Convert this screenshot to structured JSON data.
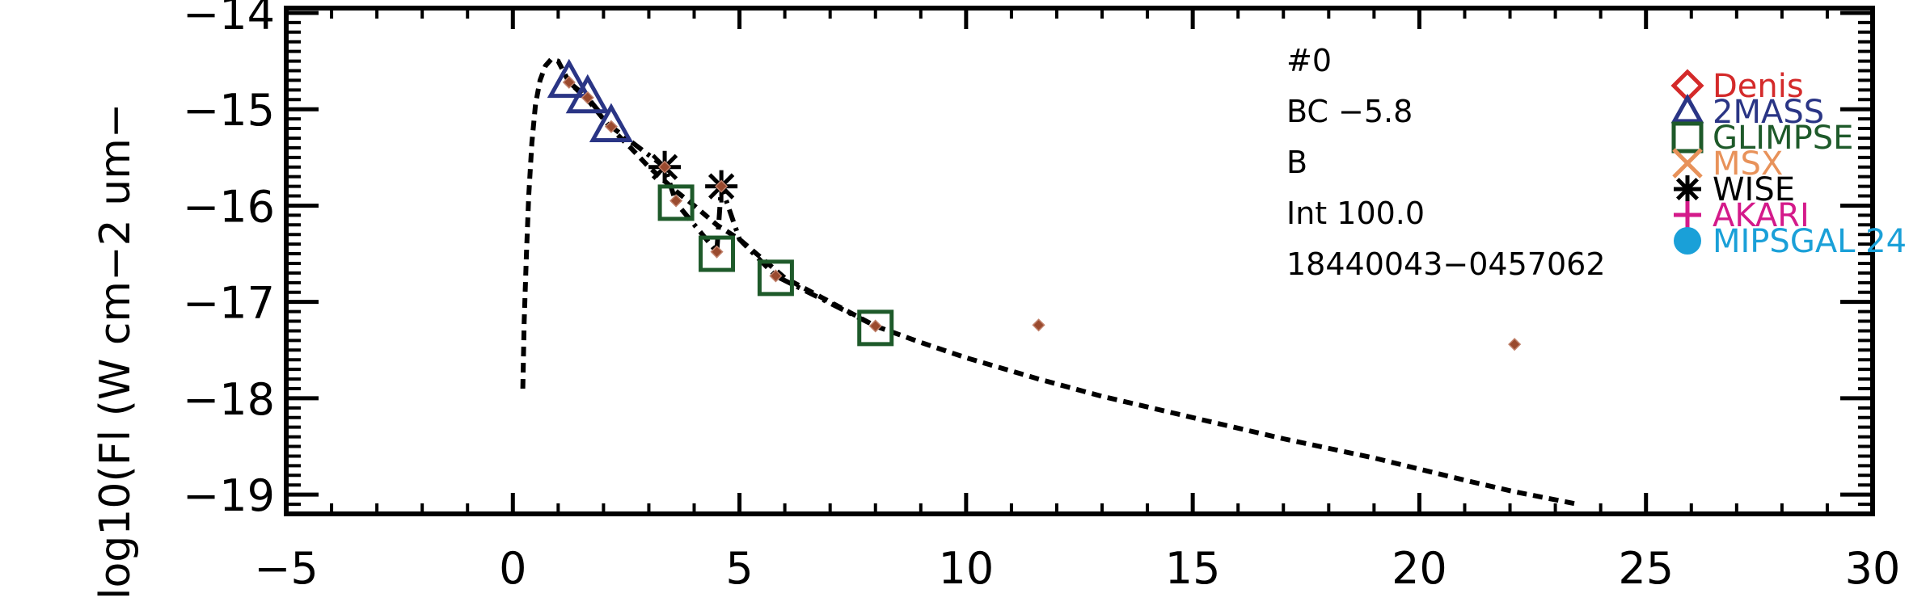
{
  "chart_data": {
    "type": "scatter",
    "ylabel": "log10(Fl (W cm−2 um−",
    "xlim": [
      -5,
      30
    ],
    "ylim": [
      -19.2,
      -13.95
    ],
    "x_ticks": [
      -5,
      0,
      5,
      10,
      15,
      20,
      25,
      30
    ],
    "x_tick_labels": [
      "−5",
      "0",
      "5",
      "10",
      "15",
      "20",
      "25",
      "30"
    ],
    "y_ticks": [
      -19,
      -18,
      -17,
      -16,
      -15,
      -14
    ],
    "y_tick_labels": [
      "−19",
      "−18",
      "−17",
      "−16",
      "−15",
      "−14"
    ],
    "info_lines": [
      "#0",
      "BC −5.8",
      "B",
      "Int 100.0",
      "18440043−0457062"
    ],
    "model_curve": {
      "style": "dashed",
      "color": "#000000",
      "x": [
        0.22,
        0.25,
        0.3,
        0.35,
        0.42,
        0.5,
        0.6,
        0.72,
        0.85,
        1.0,
        1.24,
        1.65,
        2.17,
        2.6,
        3.0,
        3.6,
        4.0,
        4.5,
        5.0,
        5.5,
        6.0,
        7.0,
        8.0,
        9.0,
        10.0,
        11.6,
        13.0,
        15.0,
        17.0,
        19.0,
        21.0,
        22.1,
        23.5
      ],
      "y": [
        -17.9,
        -17.2,
        -16.5,
        -15.9,
        -15.35,
        -14.95,
        -14.7,
        -14.55,
        -14.48,
        -14.5,
        -14.72,
        -14.9,
        -15.2,
        -15.4,
        -15.6,
        -15.85,
        -16.0,
        -16.2,
        -16.35,
        -16.55,
        -16.75,
        -17.0,
        -17.25,
        -17.42,
        -17.58,
        -17.8,
        -17.98,
        -18.2,
        -18.42,
        -18.62,
        -18.85,
        -18.97,
        -19.1
      ]
    },
    "observed_curve": {
      "style": "dash-dot",
      "color": "#000000",
      "x": [
        1.24,
        1.65,
        2.17,
        3.35,
        3.6,
        4.5,
        4.6,
        5.0,
        5.8,
        8.0
      ],
      "y": [
        -14.72,
        -14.88,
        -15.18,
        -15.6,
        -15.97,
        -16.48,
        -15.8,
        -16.35,
        -16.73,
        -17.25
      ]
    },
    "model_points": {
      "marker": "small-diamond",
      "color": "#9a4a2e",
      "x": [
        1.24,
        1.65,
        2.17,
        3.35,
        3.6,
        4.5,
        4.6,
        5.8,
        8.0,
        11.6,
        22.1
      ],
      "y": [
        -14.72,
        -14.88,
        -15.18,
        -15.6,
        -15.95,
        -16.48,
        -15.8,
        -16.73,
        -17.25,
        -17.24,
        -17.44
      ]
    },
    "series": [
      {
        "name": "Denis",
        "marker": "diamond",
        "color": "#d42a2a",
        "x": [],
        "y": []
      },
      {
        "name": "2MASS",
        "marker": "triangle",
        "color": "#2a3585",
        "x": [
          1.24,
          1.65,
          2.17
        ],
        "y": [
          -14.72,
          -14.88,
          -15.18
        ]
      },
      {
        "name": "GLIMPSE",
        "marker": "square",
        "color": "#1e5a2a",
        "x": [
          3.6,
          4.5,
          5.8,
          8.0
        ],
        "y": [
          -15.97,
          -16.5,
          -16.75,
          -17.27
        ]
      },
      {
        "name": "MSX",
        "marker": "x",
        "color": "#e8925a",
        "x": [],
        "y": []
      },
      {
        "name": "WISE",
        "marker": "asterisk",
        "color": "#000000",
        "x": [
          3.35,
          4.6
        ],
        "y": [
          -15.6,
          -15.8
        ]
      },
      {
        "name": "AKARI",
        "marker": "plus",
        "color": "#d41a8a",
        "x": [],
        "y": []
      },
      {
        "name": "MIPSGAL 24",
        "marker": "circle",
        "color": "#1aa0d8",
        "x": [],
        "y": []
      }
    ]
  }
}
